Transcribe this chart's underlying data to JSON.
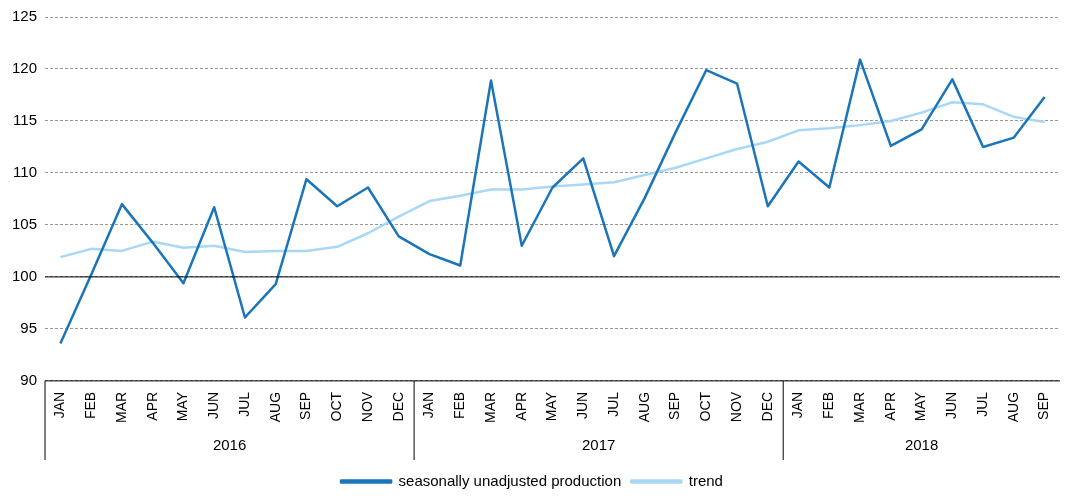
{
  "chart_data": {
    "type": "line",
    "categories": [
      "JAN",
      "FEB",
      "MAR",
      "APR",
      "MAY",
      "JUN",
      "JUL",
      "AUG",
      "SEP",
      "OCT",
      "NOV",
      "DEC",
      "JAN",
      "FEB",
      "MAR",
      "APR",
      "MAY",
      "JUN",
      "JUL",
      "AUG",
      "SEP",
      "OCT",
      "NOV",
      "DEC",
      "JAN",
      "FEB",
      "MAR",
      "APR",
      "MAY",
      "JUN",
      "JUL",
      "AUG",
      "SEP"
    ],
    "series": [
      {
        "name": "seasonally unadjusted production",
        "color": "#1a75bb",
        "values": [
          93.6,
          100.2,
          107.0,
          103.3,
          99.4,
          106.7,
          96.1,
          99.3,
          109.4,
          106.8,
          108.6,
          103.9,
          102.2,
          101.1,
          118.9,
          103.0,
          108.6,
          111.4,
          102.0,
          107.6,
          113.9,
          119.9,
          118.6,
          106.8,
          111.1,
          108.6,
          120.9,
          112.6,
          114.2,
          119.0,
          112.5,
          113.4,
          117.3
        ]
      },
      {
        "name": "trend",
        "color": "#a8d8f5",
        "values": [
          101.9,
          102.7,
          102.5,
          103.4,
          102.8,
          103.0,
          102.4,
          102.5,
          102.5,
          102.9,
          104.2,
          105.8,
          107.3,
          107.8,
          108.4,
          108.4,
          108.7,
          108.9,
          109.1,
          109.8,
          110.5,
          111.4,
          112.3,
          113.0,
          114.1,
          114.3,
          114.6,
          115.0,
          115.8,
          116.8,
          116.6,
          115.4,
          114.9
        ]
      }
    ],
    "ylim": [
      90,
      125
    ],
    "yticks": [
      90,
      95,
      100,
      105,
      110,
      115,
      120,
      125
    ],
    "grid": "y",
    "legend": "bottom",
    "marker": "none",
    "line_style": "solid",
    "ref_lines": [
      {
        "axis": "y",
        "value": 100,
        "color": "#000000"
      }
    ],
    "annotations": [
      "2016",
      "2017",
      "2018"
    ]
  }
}
